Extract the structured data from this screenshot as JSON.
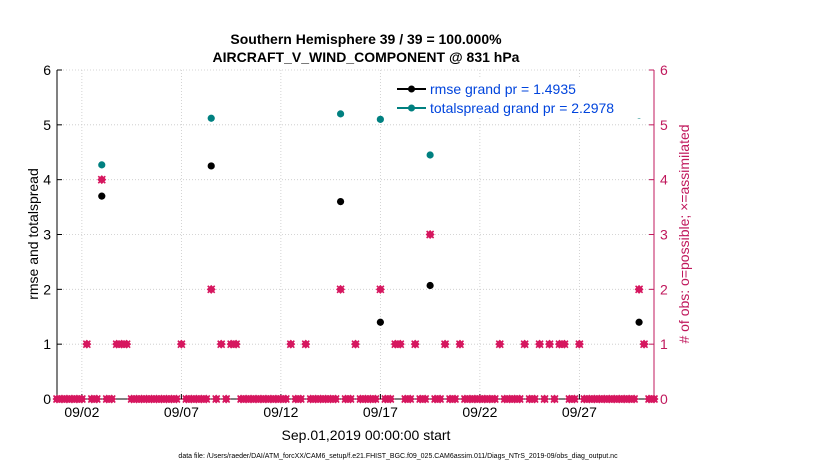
{
  "chart_data": {
    "type": "scatter",
    "title": "Southern Hemisphere 39 / 39 = 100.000%",
    "subtitle": "AIRCRAFT_V_WIND_COMPONENT @ 831 hPa",
    "xlabel": "Sep.01,2019 00:00:00 start",
    "ylabel_left": "rmse and totalspread",
    "ylabel_right": "# of obs: o=possible; ×=assimilated",
    "footnote": "data file: /Users/raeder/DAI/ATM_forcXX/CAM6_setup/f.e21.FHIST_BGC.f09_025.CAM6assim.011/Diags_NTrS_2019-09/obs_diag_output.nc",
    "xlim": [
      0.75,
      30.75
    ],
    "ylim_left": [
      0,
      6
    ],
    "ylim_right": [
      0,
      6
    ],
    "y_ticks_left": [
      0,
      1,
      2,
      3,
      4,
      5,
      6
    ],
    "y_ticks_right": [
      0,
      1,
      2,
      3,
      4,
      5,
      6
    ],
    "x_ticks": [
      {
        "value": 2,
        "label": "09/02"
      },
      {
        "value": 7,
        "label": "09/07"
      },
      {
        "value": 12,
        "label": "09/12"
      },
      {
        "value": 17,
        "label": "09/17"
      },
      {
        "value": 22,
        "label": "09/22"
      },
      {
        "value": 27,
        "label": "09/27"
      }
    ],
    "legend": {
      "placement": "top-right"
    },
    "colors": {
      "rmse": "#000000",
      "totalspread": "#008080",
      "obs": "#d6175f",
      "axis_right": "#c0185c",
      "legend_text": "#0044dd"
    },
    "series": [
      {
        "name": "rmse grand pr = 1.4935",
        "axis": "left",
        "points": [
          [
            3.0,
            3.7
          ],
          [
            8.5,
            4.25
          ],
          [
            15.0,
            3.6
          ],
          [
            17.0,
            1.4
          ],
          [
            19.5,
            2.07
          ],
          [
            30.0,
            1.4
          ]
        ]
      },
      {
        "name": "totalspread grand pr = 2.2978",
        "axis": "left",
        "points": [
          [
            3.0,
            4.27
          ],
          [
            8.5,
            5.12
          ],
          [
            15.0,
            5.2
          ],
          [
            17.0,
            5.1
          ],
          [
            19.5,
            4.45
          ],
          [
            30.0,
            5.18
          ]
        ]
      },
      {
        "name": "obs_possible",
        "axis": "right",
        "points": [
          [
            0.75,
            0
          ],
          [
            1.0,
            0
          ],
          [
            1.25,
            0
          ],
          [
            1.5,
            0
          ],
          [
            1.75,
            0
          ],
          [
            2.0,
            0
          ],
          [
            2.25,
            1
          ],
          [
            2.5,
            0
          ],
          [
            2.75,
            0
          ],
          [
            3.0,
            4
          ],
          [
            3.25,
            0
          ],
          [
            3.5,
            0
          ],
          [
            3.75,
            1
          ],
          [
            4.0,
            1
          ],
          [
            4.25,
            1
          ],
          [
            4.5,
            0
          ],
          [
            4.75,
            0
          ],
          [
            5.0,
            0
          ],
          [
            5.25,
            0
          ],
          [
            5.5,
            0
          ],
          [
            5.75,
            0
          ],
          [
            6.0,
            0
          ],
          [
            6.25,
            0
          ],
          [
            6.5,
            0
          ],
          [
            6.75,
            0
          ],
          [
            7.0,
            1
          ],
          [
            7.25,
            0
          ],
          [
            7.5,
            0
          ],
          [
            7.75,
            0
          ],
          [
            8.0,
            0
          ],
          [
            8.25,
            0
          ],
          [
            8.5,
            2
          ],
          [
            8.75,
            0
          ],
          [
            9.0,
            1
          ],
          [
            9.25,
            0
          ],
          [
            9.5,
            1
          ],
          [
            9.75,
            1
          ],
          [
            10.0,
            0
          ],
          [
            10.25,
            0
          ],
          [
            10.5,
            0
          ],
          [
            10.75,
            0
          ],
          [
            11.0,
            0
          ],
          [
            11.25,
            0
          ],
          [
            11.5,
            0
          ],
          [
            11.75,
            0
          ],
          [
            12.0,
            0
          ],
          [
            12.25,
            0
          ],
          [
            12.5,
            1
          ],
          [
            12.75,
            0
          ],
          [
            13.0,
            0
          ],
          [
            13.25,
            1
          ],
          [
            13.5,
            0
          ],
          [
            13.75,
            0
          ],
          [
            14.0,
            0
          ],
          [
            14.25,
            0
          ],
          [
            14.5,
            0
          ],
          [
            14.75,
            0
          ],
          [
            15.0,
            2
          ],
          [
            15.25,
            0
          ],
          [
            15.5,
            0
          ],
          [
            15.75,
            1
          ],
          [
            16.0,
            0
          ],
          [
            16.25,
            0
          ],
          [
            16.5,
            0
          ],
          [
            16.75,
            0
          ],
          [
            17.0,
            2
          ],
          [
            17.25,
            0
          ],
          [
            17.5,
            0
          ],
          [
            17.75,
            1
          ],
          [
            18.0,
            1
          ],
          [
            18.25,
            0
          ],
          [
            18.5,
            0
          ],
          [
            18.75,
            1
          ],
          [
            19.0,
            0
          ],
          [
            19.25,
            0
          ],
          [
            19.5,
            3
          ],
          [
            19.75,
            0
          ],
          [
            20.0,
            0
          ],
          [
            20.25,
            1
          ],
          [
            20.5,
            0
          ],
          [
            20.75,
            0
          ],
          [
            21.0,
            1
          ],
          [
            21.25,
            0
          ],
          [
            21.5,
            0
          ],
          [
            21.75,
            0
          ],
          [
            22.0,
            0
          ],
          [
            22.25,
            0
          ],
          [
            22.5,
            0
          ],
          [
            22.75,
            0
          ],
          [
            23.0,
            1
          ],
          [
            23.25,
            0
          ],
          [
            23.5,
            0
          ],
          [
            23.75,
            0
          ],
          [
            24.0,
            0
          ],
          [
            24.25,
            1
          ],
          [
            24.5,
            0
          ],
          [
            24.75,
            0
          ],
          [
            25.0,
            1
          ],
          [
            25.25,
            0
          ],
          [
            25.5,
            1
          ],
          [
            25.75,
            0
          ],
          [
            26.0,
            1
          ],
          [
            26.25,
            1
          ],
          [
            26.5,
            0
          ],
          [
            26.75,
            0
          ],
          [
            27.0,
            1
          ],
          [
            27.25,
            0
          ],
          [
            27.5,
            0
          ],
          [
            27.75,
            0
          ],
          [
            28.0,
            0
          ],
          [
            28.25,
            0
          ],
          [
            28.5,
            0
          ],
          [
            28.75,
            0
          ],
          [
            29.0,
            0
          ],
          [
            29.25,
            0
          ],
          [
            29.5,
            0
          ],
          [
            29.75,
            0
          ],
          [
            30.0,
            2
          ],
          [
            30.25,
            1
          ],
          [
            30.5,
            0
          ],
          [
            30.75,
            0
          ]
        ]
      }
    ]
  }
}
